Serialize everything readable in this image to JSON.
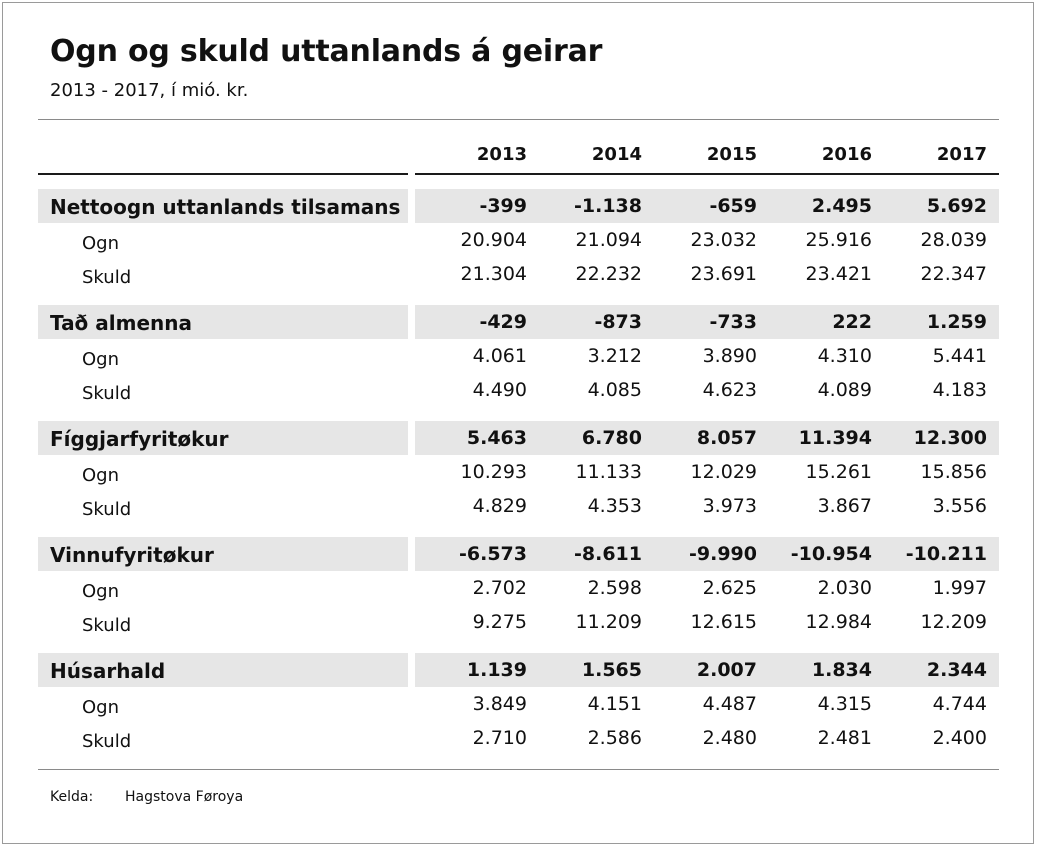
{
  "title": "Ogn og skuld uttanlands á geirar",
  "subtitle": "2013 - 2017, í mió. kr.",
  "years": [
    "2013",
    "2014",
    "2015",
    "2016",
    "2017"
  ],
  "groups": [
    {
      "label": "Nettoogn uttanlands tilsamans",
      "totals": [
        "-399",
        "-1.138",
        "-659",
        "2.495",
        "5.692"
      ],
      "rows": [
        {
          "label": "Ogn",
          "values": [
            "20.904",
            "21.094",
            "23.032",
            "25.916",
            "28.039"
          ]
        },
        {
          "label": "Skuld",
          "values": [
            "21.304",
            "22.232",
            "23.691",
            "23.421",
            "22.347"
          ]
        }
      ]
    },
    {
      "label": "Tað almenna",
      "totals": [
        "-429",
        "-873",
        "-733",
        "222",
        "1.259"
      ],
      "rows": [
        {
          "label": "Ogn",
          "values": [
            "4.061",
            "3.212",
            "3.890",
            "4.310",
            "5.441"
          ]
        },
        {
          "label": "Skuld",
          "values": [
            "4.490",
            "4.085",
            "4.623",
            "4.089",
            "4.183"
          ]
        }
      ]
    },
    {
      "label": "Fíggjarfyritøkur",
      "totals": [
        "5.463",
        "6.780",
        "8.057",
        "11.394",
        "12.300"
      ],
      "rows": [
        {
          "label": "Ogn",
          "values": [
            "10.293",
            "11.133",
            "12.029",
            "15.261",
            "15.856"
          ]
        },
        {
          "label": "Skuld",
          "values": [
            "4.829",
            "4.353",
            "3.973",
            "3.867",
            "3.556"
          ]
        }
      ]
    },
    {
      "label": "Vinnufyritøkur",
      "totals": [
        "-6.573",
        "-8.611",
        "-9.990",
        "-10.954",
        "-10.211"
      ],
      "rows": [
        {
          "label": "Ogn",
          "values": [
            "2.702",
            "2.598",
            "2.625",
            "2.030",
            "1.997"
          ]
        },
        {
          "label": "Skuld",
          "values": [
            "9.275",
            "11.209",
            "12.615",
            "12.984",
            "12.209"
          ]
        }
      ]
    },
    {
      "label": "Húsarhald",
      "totals": [
        "1.139",
        "1.565",
        "2.007",
        "1.834",
        "2.344"
      ],
      "rows": [
        {
          "label": "Ogn",
          "values": [
            "3.849",
            "4.151",
            "4.487",
            "4.315",
            "4.744"
          ]
        },
        {
          "label": "Skuld",
          "values": [
            "2.710",
            "2.586",
            "2.480",
            "2.481",
            "2.400"
          ]
        }
      ]
    }
  ],
  "source": {
    "label": "Kelda:",
    "value": "Hagstova Føroya"
  }
}
